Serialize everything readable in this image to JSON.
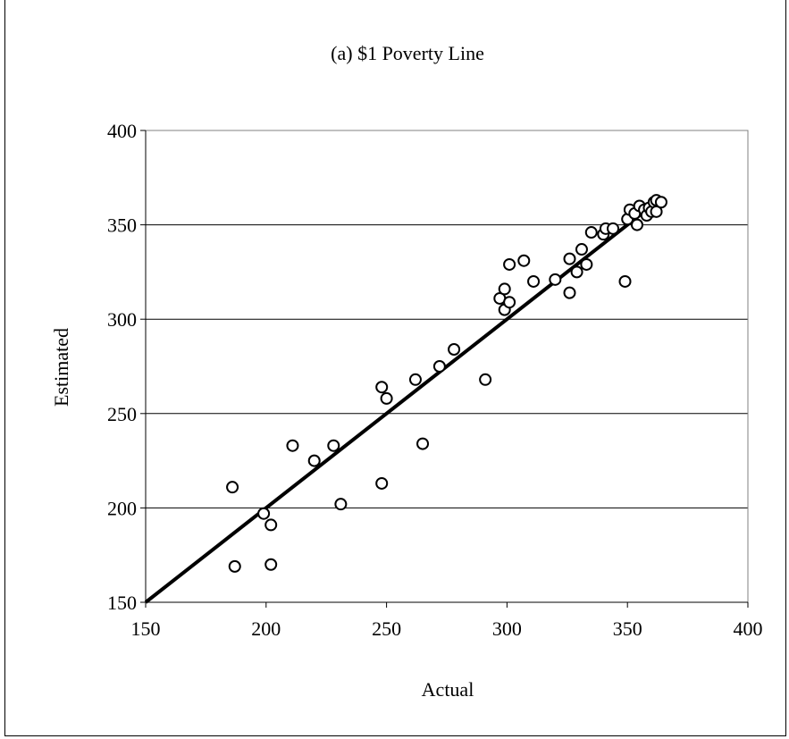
{
  "chart_data": {
    "type": "scatter",
    "title": "(a)  $1 Poverty Line",
    "xlabel": "Actual",
    "ylabel": "Estimated",
    "xlim": [
      150,
      400
    ],
    "ylim": [
      150,
      400
    ],
    "xticks": [
      150,
      200,
      250,
      300,
      350,
      400
    ],
    "yticks": [
      150,
      200,
      250,
      300,
      350,
      400
    ],
    "grid": "horizontal",
    "legend": "none",
    "colors": {
      "line": "#000000",
      "marker": "#000000",
      "grid": "#000000",
      "plot_border": "#808080"
    },
    "reference_line": {
      "x": [
        150,
        362
      ],
      "y": [
        150,
        362
      ]
    },
    "points": [
      {
        "x": 186,
        "y": 211
      },
      {
        "x": 187,
        "y": 169
      },
      {
        "x": 199,
        "y": 197
      },
      {
        "x": 202,
        "y": 191
      },
      {
        "x": 202,
        "y": 170
      },
      {
        "x": 211,
        "y": 233
      },
      {
        "x": 220,
        "y": 225
      },
      {
        "x": 228,
        "y": 233
      },
      {
        "x": 231,
        "y": 202
      },
      {
        "x": 248,
        "y": 213
      },
      {
        "x": 248,
        "y": 264
      },
      {
        "x": 250,
        "y": 258
      },
      {
        "x": 262,
        "y": 268
      },
      {
        "x": 265,
        "y": 234
      },
      {
        "x": 272,
        "y": 275
      },
      {
        "x": 278,
        "y": 284
      },
      {
        "x": 291,
        "y": 268
      },
      {
        "x": 297,
        "y": 311
      },
      {
        "x": 299,
        "y": 316
      },
      {
        "x": 299,
        "y": 305
      },
      {
        "x": 301,
        "y": 309
      },
      {
        "x": 301,
        "y": 329
      },
      {
        "x": 307,
        "y": 331
      },
      {
        "x": 311,
        "y": 320
      },
      {
        "x": 320,
        "y": 321
      },
      {
        "x": 326,
        "y": 332
      },
      {
        "x": 326,
        "y": 314
      },
      {
        "x": 329,
        "y": 325
      },
      {
        "x": 331,
        "y": 337
      },
      {
        "x": 333,
        "y": 329
      },
      {
        "x": 335,
        "y": 346
      },
      {
        "x": 340,
        "y": 345
      },
      {
        "x": 341,
        "y": 348
      },
      {
        "x": 344,
        "y": 348
      },
      {
        "x": 349,
        "y": 320
      },
      {
        "x": 350,
        "y": 353
      },
      {
        "x": 351,
        "y": 358
      },
      {
        "x": 353,
        "y": 356
      },
      {
        "x": 354,
        "y": 350
      },
      {
        "x": 355,
        "y": 360
      },
      {
        "x": 357,
        "y": 358
      },
      {
        "x": 358,
        "y": 355
      },
      {
        "x": 359,
        "y": 359
      },
      {
        "x": 360,
        "y": 357
      },
      {
        "x": 361,
        "y": 362
      },
      {
        "x": 362,
        "y": 357
      },
      {
        "x": 362,
        "y": 363
      },
      {
        "x": 364,
        "y": 362
      }
    ]
  }
}
